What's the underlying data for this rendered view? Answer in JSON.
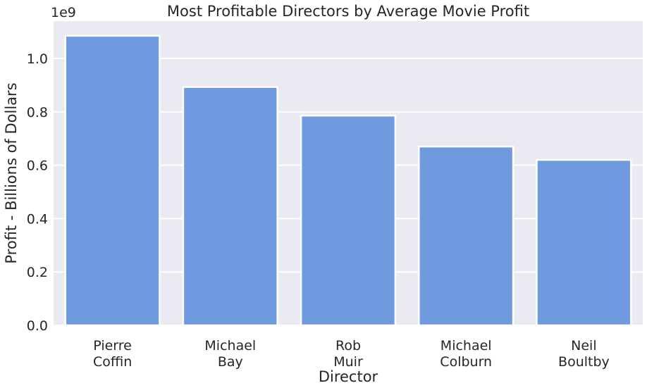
{
  "chart_data": {
    "type": "bar",
    "title": "Most Profitable Directors by Average Movie Profit",
    "xlabel": "Director",
    "ylabel": "Profit - Billions of Dollars",
    "y_offset_label": "1e9",
    "categories": [
      [
        "Pierre",
        "Coffin"
      ],
      [
        "Michael",
        "Bay"
      ],
      [
        "Rob",
        "Muir"
      ],
      [
        "Michael",
        "Colburn"
      ],
      [
        "Neil",
        "Boultby"
      ]
    ],
    "values": [
      1085000000,
      893000000,
      786000000,
      670000000,
      620000000
    ],
    "ylim": [
      0,
      1140000000
    ],
    "yticks": [
      {
        "value": 0.0,
        "label": "0.0"
      },
      {
        "value": 200000000,
        "label": "0.2"
      },
      {
        "value": 400000000,
        "label": "0.4"
      },
      {
        "value": 600000000,
        "label": "0.6"
      },
      {
        "value": 800000000,
        "label": "0.8"
      },
      {
        "value": 1000000000,
        "label": "1.0"
      }
    ],
    "grid": true,
    "bar_color": "#6f9ae0",
    "background_color": "#eaeaf2"
  }
}
